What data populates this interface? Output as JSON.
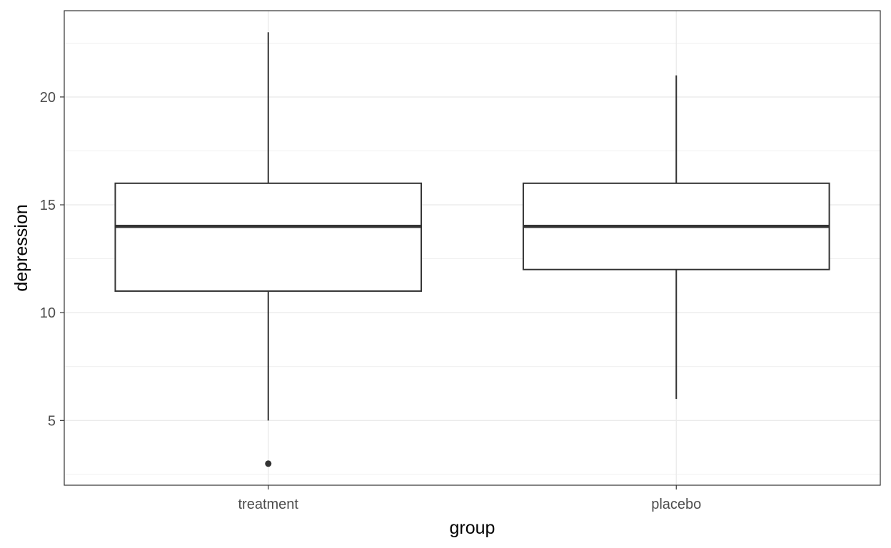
{
  "chart_data": {
    "type": "box",
    "title": "",
    "xlabel": "group",
    "ylabel": "depression",
    "categories": [
      "treatment",
      "placebo"
    ],
    "ylim": [
      2.0,
      24.0
    ],
    "y_ticks": [
      5,
      10,
      15,
      20
    ],
    "y_tick_labels": [
      "5",
      "10",
      "15",
      "20"
    ],
    "grid": true,
    "boxes": [
      {
        "category": "treatment",
        "whisker_low": 5,
        "q1": 11,
        "median": 14,
        "q3": 16,
        "whisker_high": 23,
        "outliers": [
          3
        ]
      },
      {
        "category": "placebo",
        "whisker_low": 6,
        "q1": 12,
        "median": 14,
        "q3": 16,
        "whisker_high": 21,
        "outliers": []
      }
    ],
    "colors": {
      "grid": "#ebebeb",
      "box_line": "#333333",
      "box_fill": "#ffffff",
      "panel_border": "#333333",
      "tick_text": "#4d4d4d",
      "title_text": "#000000"
    }
  }
}
